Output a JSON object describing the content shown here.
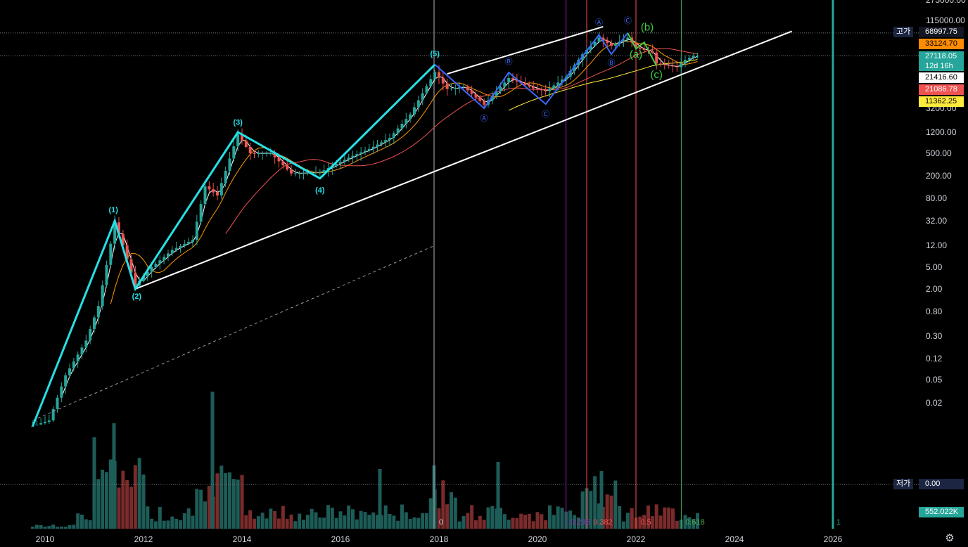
{
  "chart_data": {
    "type": "candlestick",
    "y_scale": "log",
    "ylim": [
      0.008,
      275000
    ],
    "xlim": [
      "2009-09",
      "2027-01"
    ],
    "grid": false,
    "price_ticks": [
      "275000.00",
      "115000.00",
      "3200.00",
      "1200.00",
      "500.00",
      "200.00",
      "80.00",
      "32.00",
      "12.00",
      "5.00",
      "2.00",
      "0.80",
      "0.30",
      "0.12",
      "0.05",
      "0.02"
    ],
    "x_ticks": [
      "2010",
      "2012",
      "2014",
      "2016",
      "2018",
      "2020",
      "2022",
      "2024",
      "2026"
    ],
    "price_labels": [
      {
        "text": "68997.75",
        "value": 68997.75,
        "bg": "#131722",
        "fg": "#ffffff",
        "tag": "고가"
      },
      {
        "text": "33124.70",
        "value": 33124.7,
        "bg": "#ff8c00",
        "fg": "#000000"
      },
      {
        "text": "27118.05",
        "sub": "12d 16h",
        "value": 27118.05,
        "bg": "#26a69a",
        "fg": "#ffffff"
      },
      {
        "text": "21416.60",
        "value": 21416.6,
        "bg": "#ffffff",
        "fg": "#000000"
      },
      {
        "text": "21086.78",
        "value": 21086.78,
        "bg": "#ef5350",
        "fg": "#ffffff"
      },
      {
        "text": "11362.25",
        "value": 11362.25,
        "bg": "#ffeb3b",
        "fg": "#000000"
      }
    ],
    "low_label": {
      "tag": "저가",
      "text": "0.00"
    },
    "volume_label": {
      "text": "552.022K",
      "bg": "#26a69a"
    },
    "wave_labels_major": [
      {
        "text": "(1)",
        "date": "2011-06",
        "price": 32
      },
      {
        "text": "(2)",
        "date": "2011-11",
        "price": 2.0
      },
      {
        "text": "(3)",
        "date": "2013-12",
        "price": 1150
      },
      {
        "text": "(4)",
        "date": "2015-08",
        "price": 160
      },
      {
        "text": "(5)",
        "date": "2017-12",
        "price": 19000
      }
    ],
    "wave_labels_abc": [
      {
        "text": "Ⓐ",
        "date": "2021-04",
        "price": 64000
      },
      {
        "text": "Ⓒ",
        "date": "2021-11",
        "price": 69000
      },
      {
        "text": "Ⓑ",
        "date": "2019-06",
        "price": 13800
      },
      {
        "text": "Ⓐ",
        "date": "2018-12",
        "price": 3200
      },
      {
        "text": "Ⓒ",
        "date": "2020-03",
        "price": 3800
      },
      {
        "text": "Ⓑ",
        "date": "2021-07",
        "price": 29000
      }
    ],
    "wave_labels_green": [
      {
        "text": "(b)",
        "date": "2022-01",
        "price": 60000
      },
      {
        "text": "(a)",
        "date": "2022-01",
        "price": 30000
      },
      {
        "text": "(c)",
        "date": "2022-06",
        "price": 15500
      }
    ],
    "fib_labels": [
      {
        "text": "0",
        "color": "#d1d4dc"
      },
      {
        "text": "0.236",
        "color": "#9c27b0"
      },
      {
        "text": "0.382",
        "color": "#ef5350"
      },
      {
        "text": "0.5",
        "color": "#ef5350"
      },
      {
        "text": "0.618",
        "color": "#4caf50"
      },
      {
        "text": "1",
        "color": "#26a69a"
      }
    ],
    "colors": {
      "up": "#26a69a",
      "down": "#ef5350",
      "wave": "#26e0e6",
      "abc": "#3b67ff",
      "green": "#3ecf3e",
      "ma_orange": "#ff9800",
      "ma_red": "#ef5350",
      "ma_yellow": "#ffeb3b"
    }
  },
  "icons": {
    "settings": "gear-icon"
  }
}
